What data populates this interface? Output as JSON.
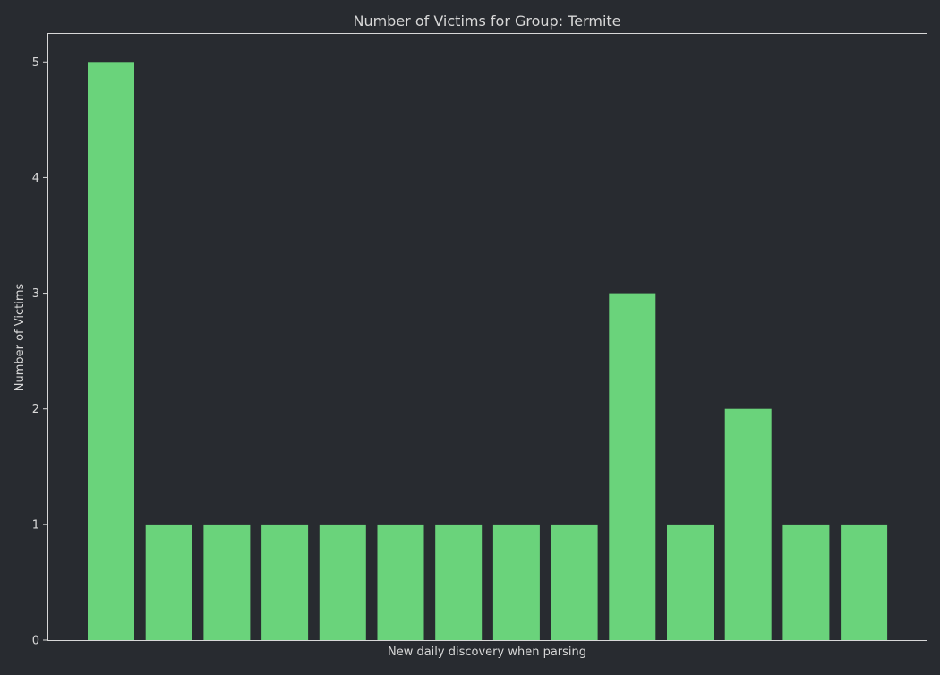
{
  "chart_data": {
    "type": "bar",
    "title": "Number of Victims for Group: Termite",
    "xlabel": "New daily discovery when parsing",
    "ylabel": "Number of Victims",
    "ylim": [
      0,
      5.25
    ],
    "yticks": [
      0,
      1,
      2,
      3,
      4,
      5
    ],
    "x_tick_labels_shown": false,
    "grid": false,
    "legend": "none",
    "values": [
      5,
      1,
      1,
      1,
      1,
      1,
      1,
      1,
      1,
      3,
      1,
      2,
      1,
      1
    ],
    "colors": {
      "background": "#282b30",
      "bar": "#6ad37b",
      "axis": "#d8d8d8",
      "text": "#d8d8d8"
    }
  }
}
